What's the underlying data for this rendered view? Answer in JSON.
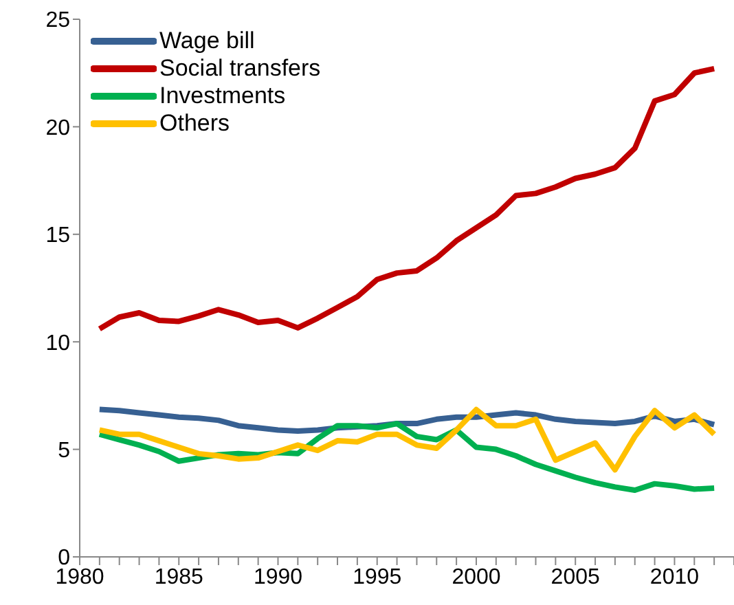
{
  "chart_data": {
    "type": "line",
    "x": [
      1981,
      1982,
      1983,
      1984,
      1985,
      1986,
      1987,
      1988,
      1989,
      1990,
      1991,
      1992,
      1993,
      1994,
      1995,
      1996,
      1997,
      1998,
      1999,
      2000,
      2001,
      2002,
      2003,
      2004,
      2005,
      2006,
      2007,
      2008,
      2009,
      2010,
      2011,
      2012
    ],
    "series": [
      {
        "name": "Wage bill",
        "color": "#376092",
        "values": [
          6.86,
          6.8,
          6.7,
          6.6,
          6.5,
          6.45,
          6.35,
          6.1,
          6.0,
          5.9,
          5.85,
          5.9,
          6.0,
          6.05,
          6.1,
          6.2,
          6.2,
          6.4,
          6.5,
          6.5,
          6.6,
          6.7,
          6.6,
          6.4,
          6.3,
          6.25,
          6.2,
          6.3,
          6.55,
          6.3,
          6.4,
          6.15
        ]
      },
      {
        "name": "Social transfers",
        "color": "#c00000",
        "values": [
          10.6,
          11.15,
          11.35,
          11.0,
          10.95,
          11.2,
          11.5,
          11.25,
          10.9,
          11.0,
          10.65,
          11.1,
          11.6,
          12.1,
          12.9,
          13.2,
          13.3,
          13.9,
          14.7,
          15.3,
          15.9,
          16.8,
          16.9,
          17.2,
          17.6,
          17.8,
          18.1,
          19.0,
          21.2,
          21.5,
          22.5,
          22.7
        ]
      },
      {
        "name": "Investments",
        "color": "#00b050",
        "values": [
          5.7,
          5.45,
          5.2,
          4.9,
          4.45,
          4.6,
          4.75,
          4.8,
          4.75,
          4.85,
          4.8,
          5.5,
          6.1,
          6.1,
          6.0,
          6.2,
          5.6,
          5.45,
          5.9,
          5.1,
          5.0,
          4.7,
          4.3,
          4.0,
          3.7,
          3.45,
          3.25,
          3.1,
          3.4,
          3.3,
          3.15,
          3.2
        ]
      },
      {
        "name": "Others",
        "color": "#ffc000",
        "values": [
          5.9,
          5.7,
          5.7,
          5.4,
          5.1,
          4.8,
          4.7,
          4.55,
          4.6,
          4.9,
          5.2,
          4.95,
          5.4,
          5.35,
          5.7,
          5.7,
          5.2,
          5.05,
          5.9,
          6.85,
          6.1,
          6.1,
          6.4,
          4.5,
          4.9,
          5.3,
          4.05,
          5.6,
          6.8,
          6.0,
          6.6,
          5.7
        ]
      }
    ],
    "xlim": [
      1980,
      2013
    ],
    "xticks": [
      1980,
      {
        "value": 1981,
        "label": null
      },
      {
        "value": 1982,
        "label": null
      },
      {
        "value": 1983,
        "label": null
      },
      {
        "value": 1984,
        "label": null
      },
      1985,
      {
        "value": 1986,
        "label": null
      },
      {
        "value": 1987,
        "label": null
      },
      {
        "value": 1988,
        "label": null
      },
      {
        "value": 1989,
        "label": null
      },
      1990,
      {
        "value": 1991,
        "label": null
      },
      {
        "value": 1992,
        "label": null
      },
      {
        "value": 1993,
        "label": null
      },
      {
        "value": 1994,
        "label": null
      },
      1995,
      {
        "value": 1996,
        "label": null
      },
      {
        "value": 1997,
        "label": null
      },
      {
        "value": 1998,
        "label": null
      },
      {
        "value": 1999,
        "label": null
      },
      2000,
      {
        "value": 2001,
        "label": null
      },
      {
        "value": 2002,
        "label": null
      },
      {
        "value": 2003,
        "label": null
      },
      {
        "value": 2004,
        "label": null
      },
      2005,
      {
        "value": 2006,
        "label": null
      },
      {
        "value": 2007,
        "label": null
      },
      {
        "value": 2008,
        "label": null
      },
      {
        "value": 2009,
        "label": null
      },
      2010,
      {
        "value": 2011,
        "label": null
      },
      {
        "value": 2012,
        "label": null
      },
      {
        "value": 2013,
        "label": null
      }
    ],
    "ylim": [
      0,
      25
    ],
    "yticks": [
      0,
      5,
      10,
      15,
      20,
      25
    ],
    "legend": "top left",
    "grid": false,
    "marker": "none",
    "line_style": "solid"
  }
}
